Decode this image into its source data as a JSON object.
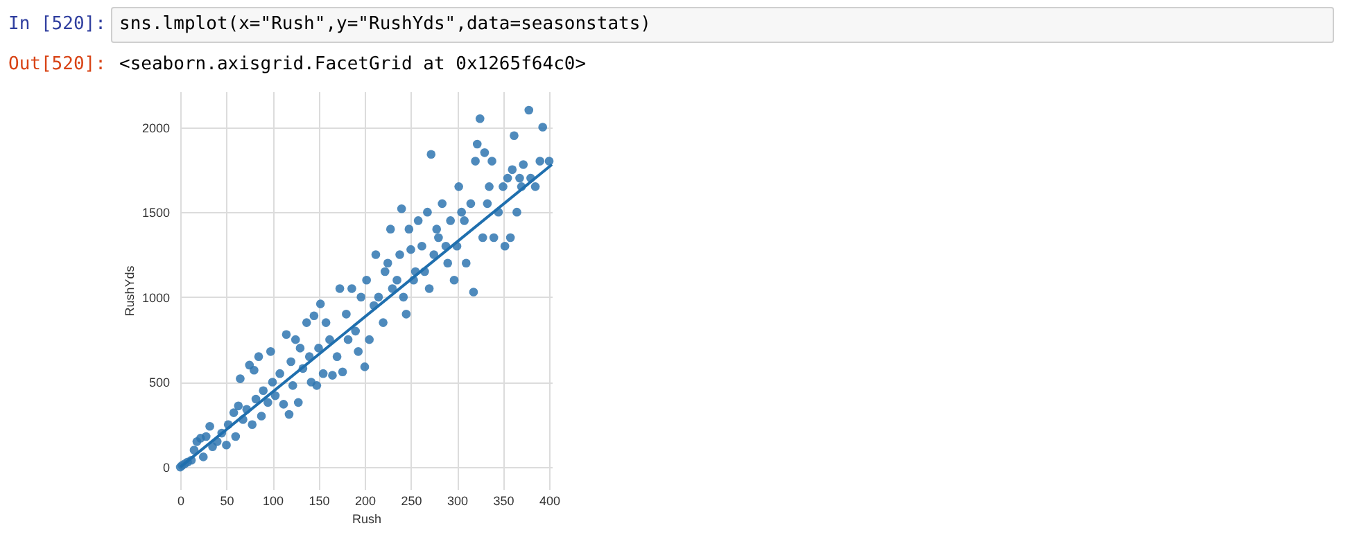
{
  "chart_data": {
    "type": "scatter",
    "xlabel": "Rush",
    "ylabel": "RushYds",
    "annotations": [
      "In [520]:",
      "sns.lmplot(x=\"Rush\",y=\"RushYds\",data=seasonstats)",
      "Out[520]:",
      "<seaborn.axisgrid.FacetGrid at 0x1265f64c0>"
    ],
    "xlim": [
      0,
      403
    ],
    "xticks": [
      0,
      50,
      100,
      150,
      200,
      250,
      300,
      350,
      400
    ],
    "ylim": [
      -130,
      2210
    ],
    "yticks": [
      0,
      500,
      1000,
      1500,
      2000
    ],
    "grid": true,
    "series": [
      {
        "marker": "circle",
        "color": "#2f76b0",
        "x": [
          0,
          2,
          5,
          8,
          12,
          15,
          18,
          22,
          25,
          28,
          32,
          35,
          40,
          45,
          50,
          52,
          58,
          60,
          63,
          65,
          68,
          72,
          75,
          78,
          80,
          82,
          85,
          88,
          90,
          95,
          98,
          100,
          103,
          108,
          112,
          115,
          118,
          120,
          122,
          125,
          128,
          130,
          133,
          137,
          140,
          142,
          145,
          148,
          150,
          152,
          155,
          158,
          162,
          165,
          170,
          173,
          176,
          180,
          182,
          186,
          190,
          193,
          196,
          200,
          202,
          205,
          210,
          212,
          215,
          220,
          222,
          225,
          228,
          230,
          235,
          238,
          240,
          242,
          245,
          248,
          250,
          253,
          255,
          258,
          262,
          265,
          268,
          270,
          272,
          275,
          278,
          280,
          284,
          288,
          290,
          293,
          297,
          300,
          302,
          305,
          308,
          310,
          315,
          318,
          320,
          322,
          325,
          328,
          330,
          333,
          335,
          338,
          340,
          345,
          350,
          352,
          355,
          358,
          360,
          362,
          365,
          368,
          370,
          372,
          378,
          380,
          385,
          390,
          393,
          400
        ],
        "values": [
          0,
          10,
          20,
          30,
          40,
          100,
          150,
          170,
          60,
          180,
          240,
          120,
          150,
          200,
          130,
          250,
          320,
          180,
          360,
          520,
          280,
          340,
          600,
          250,
          570,
          400,
          650,
          300,
          450,
          380,
          680,
          500,
          420,
          550,
          370,
          780,
          310,
          620,
          480,
          750,
          380,
          700,
          580,
          850,
          650,
          500,
          890,
          480,
          700,
          960,
          550,
          850,
          750,
          540,
          650,
          1050,
          560,
          900,
          750,
          1050,
          800,
          680,
          1000,
          590,
          1100,
          750,
          950,
          1250,
          1000,
          850,
          1150,
          1200,
          1400,
          1050,
          1100,
          1250,
          1520,
          1000,
          900,
          1400,
          1280,
          1100,
          1150,
          1450,
          1300,
          1150,
          1500,
          1050,
          1840,
          1250,
          1400,
          1350,
          1550,
          1300,
          1200,
          1450,
          1100,
          1300,
          1650,
          1500,
          1450,
          1200,
          1550,
          1030,
          1800,
          1900,
          2050,
          1350,
          1850,
          1550,
          1650,
          1800,
          1350,
          1500,
          1650,
          1300,
          1700,
          1350,
          1750,
          1950,
          1500,
          1700,
          1650,
          1780,
          2100,
          1700,
          1650,
          1800,
          2000,
          1800
        ]
      },
      {
        "type": "line",
        "color": "#1f6fae",
        "x": [
          0,
          403
        ],
        "values": [
          0,
          1780
        ]
      }
    ]
  }
}
